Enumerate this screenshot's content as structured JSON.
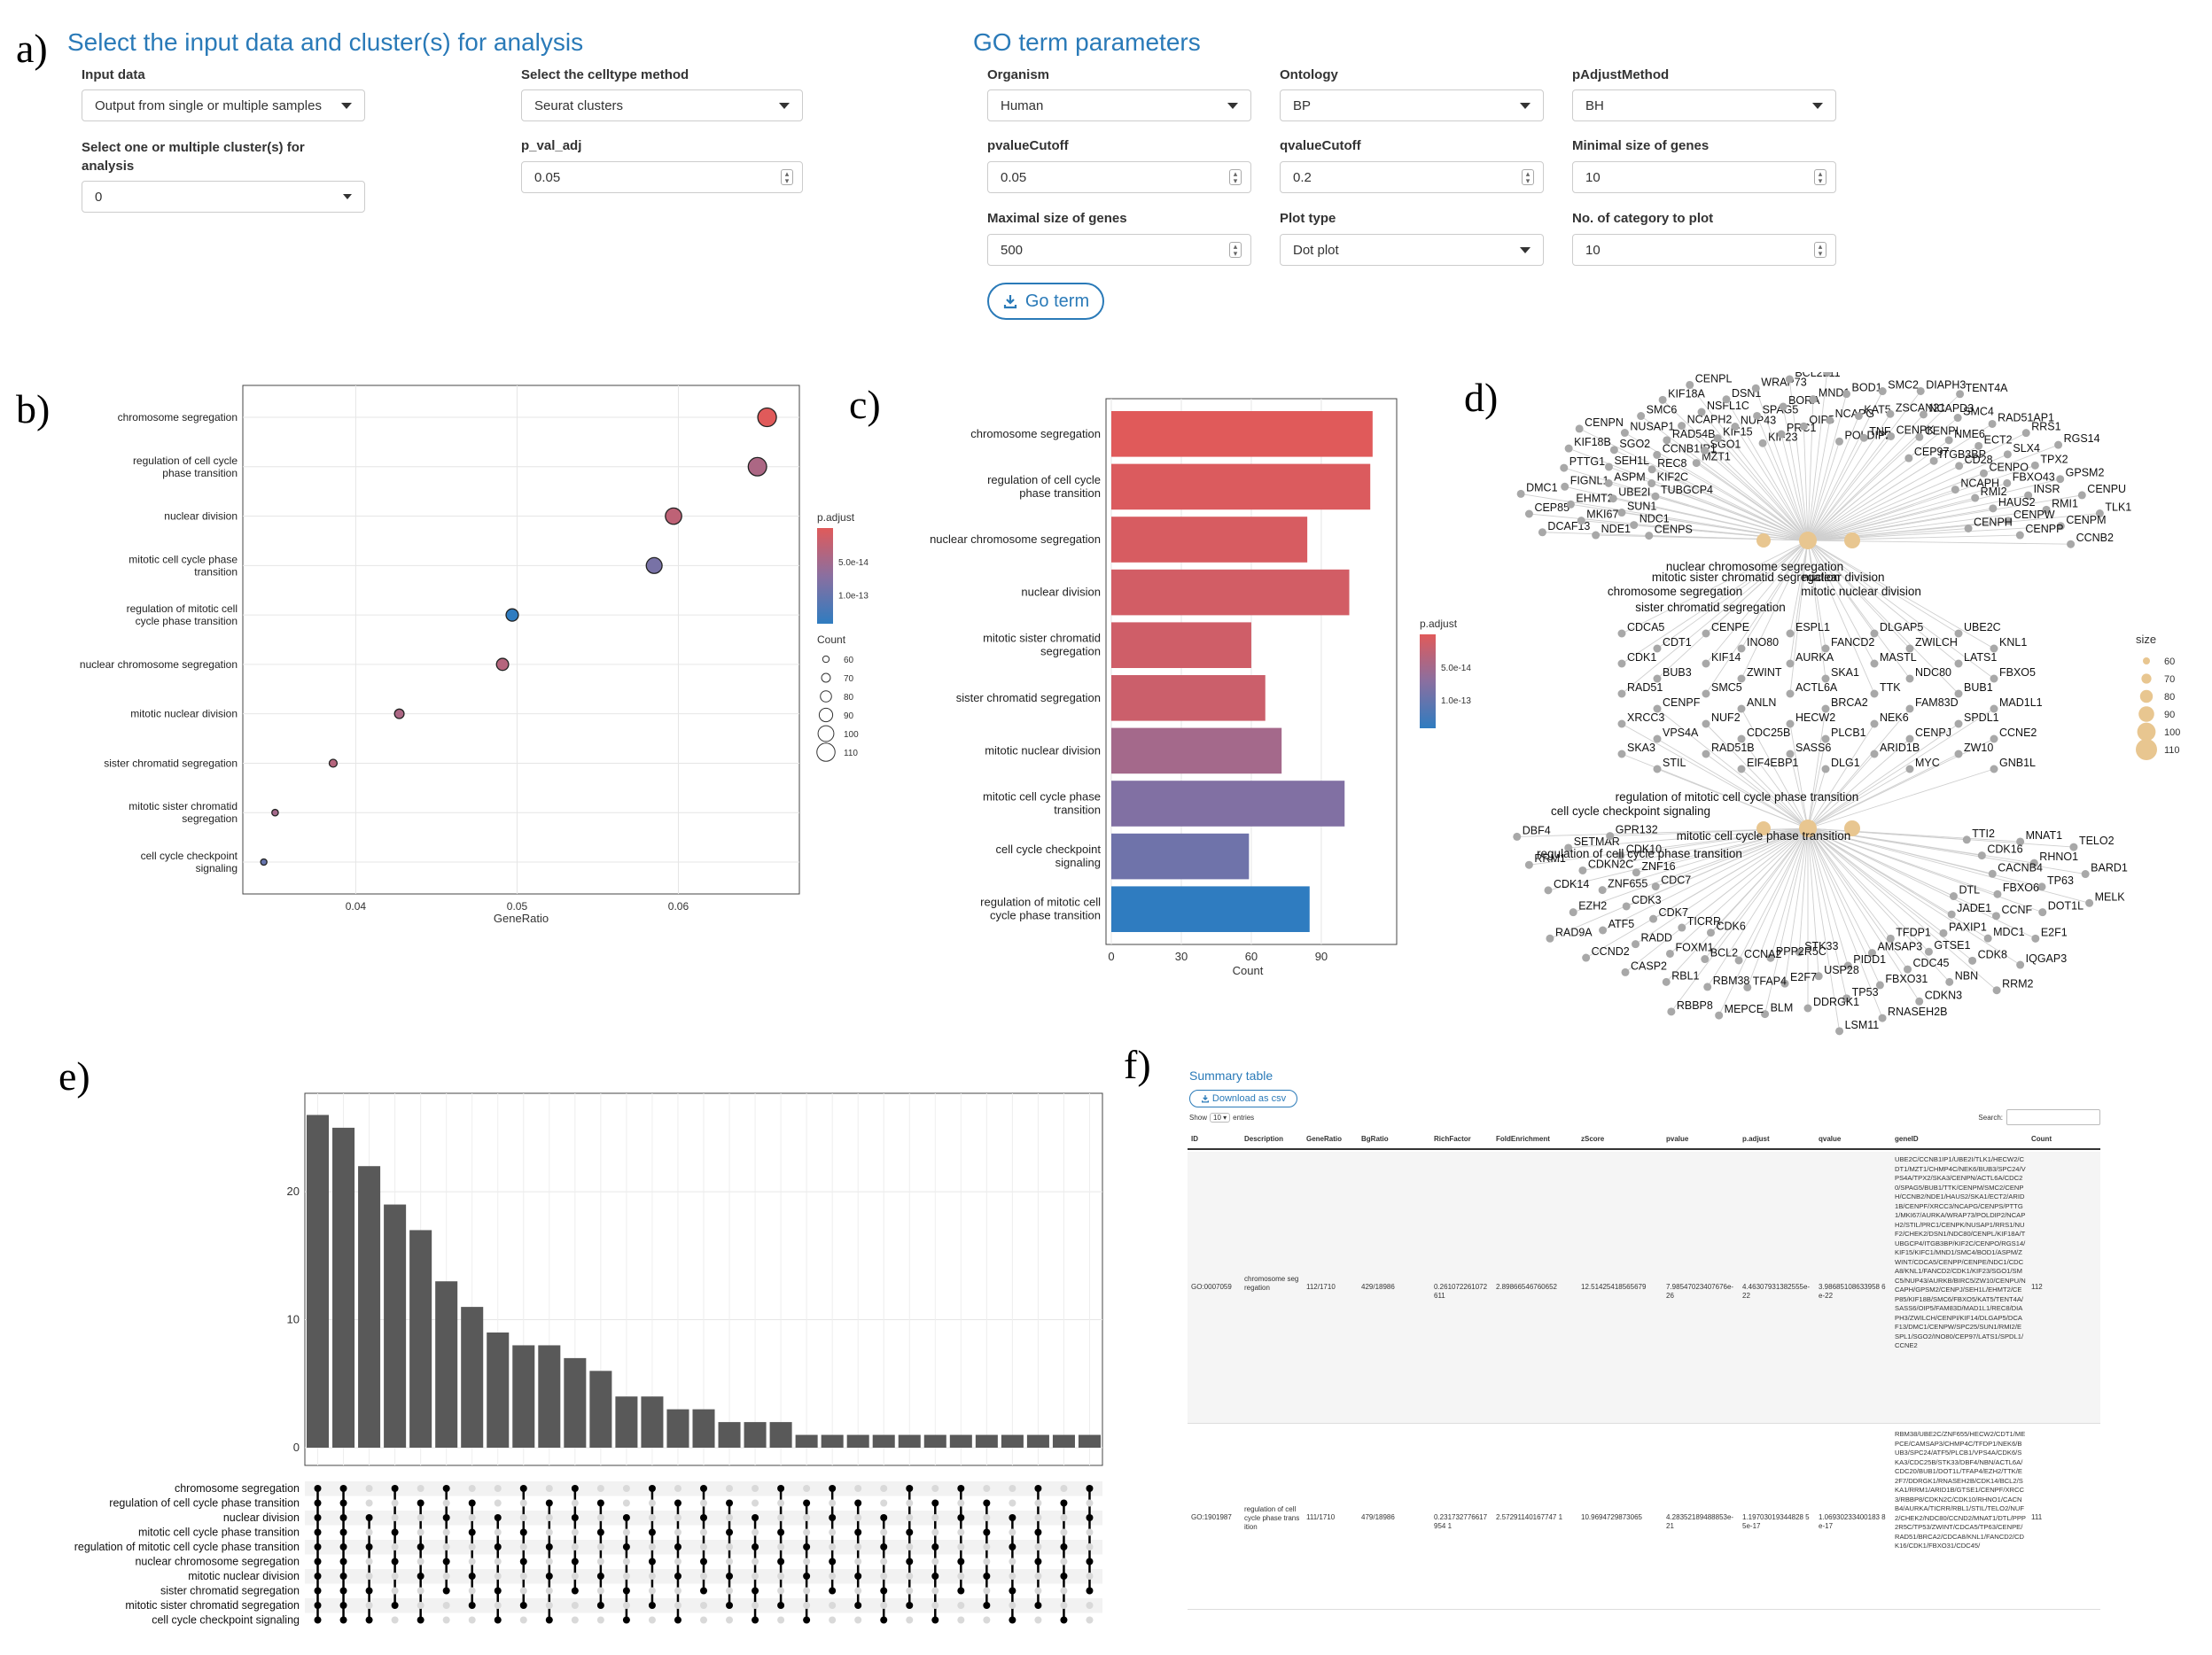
{
  "letters": {
    "a": "a)",
    "b": "b)",
    "c": "c)",
    "d": "d)",
    "e": "e)",
    "f": "f)"
  },
  "input_section": {
    "title": "Select the input data and cluster(s) for analysis",
    "input_data_label": "Input data",
    "input_data_value": "Output from single or multiple samples",
    "celltype_label": "Select the celltype method",
    "celltype_value": "Seurat clusters",
    "clusters_label_1": "Select one or multiple cluster(s) for",
    "clusters_label_2": "analysis",
    "clusters_value": "0",
    "pval_label": "p_val_adj",
    "pval_value": "0.05"
  },
  "go_section": {
    "title": "GO term parameters",
    "organism_label": "Organism",
    "organism_value": "Human",
    "ontology_label": "Ontology",
    "ontology_value": "BP",
    "padjust_label": "pAdjustMethod",
    "padjust_value": "BH",
    "pvalue_label": "pvalueCutoff",
    "pvalue_value": "0.05",
    "qvalue_label": "qvalueCutoff",
    "qvalue_value": "0.2",
    "minsize_label": "Minimal size of genes",
    "minsize_value": "10",
    "maxsize_label": "Maximal size of genes",
    "maxsize_value": "500",
    "plottype_label": "Plot type",
    "plottype_value": "Dot plot",
    "ncat_label": "No. of category to plot",
    "ncat_value": "10",
    "go_button": "Go term"
  },
  "chart_data": [
    {
      "type": "scatter",
      "panel": "b",
      "xlabel": "GeneRatio",
      "xticks": [
        0.04,
        0.05,
        0.06
      ],
      "xlim": [
        0.033,
        0.0675
      ],
      "categories": [
        "chromosome segregation",
        "regulation of cell cycle phase transition",
        "nuclear division",
        "mitotic cell cycle phase transition",
        "regulation of mitotic cell cycle phase transition",
        "nuclear chromosome segregation",
        "mitotic nuclear division",
        "sister chromatid segregation",
        "mitotic sister chromatid segregation",
        "cell cycle checkpoint signaling"
      ],
      "category_lines": [
        [
          "chromosome segregation"
        ],
        [
          "regulation of cell cycle",
          "phase transition"
        ],
        [
          "nuclear division"
        ],
        [
          "mitotic cell cycle phase",
          "transition"
        ],
        [
          "regulation of mitotic cell",
          "cycle phase transition"
        ],
        [
          "nuclear chromosome segregation"
        ],
        [
          "mitotic nuclear division"
        ],
        [
          "sister chromatid segregation"
        ],
        [
          "mitotic sister chromatid",
          "segregation"
        ],
        [
          "cell cycle checkpoint",
          "signaling"
        ]
      ],
      "x": [
        0.0655,
        0.0649,
        0.0597,
        0.0585,
        0.0497,
        0.0491,
        0.0427,
        0.0386,
        0.035,
        0.0343
      ],
      "count": [
        112,
        111,
        102,
        100,
        85,
        84,
        73,
        66,
        60,
        59
      ],
      "p_adjust_scale": [
        0,
        0.3,
        0.2,
        0.6,
        1.0,
        0.25,
        0.3,
        0.25,
        0.35,
        0.7
      ],
      "legend_color_title": "p.adjust",
      "legend_color_ticks": [
        "5.0e-14",
        "1.0e-13"
      ],
      "legend_size_title": "Count",
      "legend_size_values": [
        "60",
        "70",
        "80",
        "90",
        "100",
        "110"
      ]
    },
    {
      "type": "bar",
      "panel": "c",
      "xlabel": "Count",
      "xticks": [
        0,
        30,
        60,
        90
      ],
      "xlim": [
        0,
        117
      ],
      "categories": [
        "chromosome segregation",
        "regulation of cell cycle phase transition",
        "nuclear chromosome segregation",
        "nuclear division",
        "mitotic sister chromatid segregation",
        "sister chromatid segregation",
        "mitotic nuclear division",
        "mitotic cell cycle phase transition",
        "cell cycle checkpoint signaling",
        "regulation of mitotic cell cycle phase transition"
      ],
      "category_lines": [
        [
          "chromosome segregation"
        ],
        [
          "regulation of cell cycle",
          "phase transition"
        ],
        [
          "nuclear chromosome segregation"
        ],
        [
          "nuclear division"
        ],
        [
          "mitotic sister chromatid",
          "segregation"
        ],
        [
          "sister chromatid segregation"
        ],
        [
          "mitotic nuclear division"
        ],
        [
          "mitotic cell cycle phase",
          "transition"
        ],
        [
          "cell cycle checkpoint",
          "signaling"
        ],
        [
          "regulation of mitotic cell",
          "cycle phase transition"
        ]
      ],
      "values": [
        112,
        111,
        84,
        102,
        60,
        66,
        73,
        100,
        59,
        85
      ],
      "p_adjust_scale": [
        0,
        0.03,
        0.05,
        0.08,
        0.1,
        0.12,
        0.35,
        0.55,
        0.65,
        1.0
      ],
      "legend_color_title": "p.adjust",
      "legend_color_ticks": [
        "5.0e-14",
        "1.0e-13"
      ]
    },
    {
      "type": "bar",
      "panel": "e",
      "yticks": [
        0,
        10,
        20
      ],
      "ylim": [
        0,
        27
      ],
      "values": [
        26,
        25,
        22,
        19,
        17,
        13,
        11,
        9,
        8,
        8,
        7,
        6,
        4,
        4,
        3,
        3,
        2,
        2,
        2,
        1,
        1,
        1,
        1,
        1,
        1,
        1,
        1,
        1,
        1,
        1,
        1
      ],
      "set_labels": [
        "chromosome segregation",
        "regulation of cell cycle phase transition",
        "nuclear division",
        "mitotic cell cycle phase transition",
        "regulation of mitotic cell cycle phase transition",
        "nuclear chromosome segregation",
        "mitotic nuclear division",
        "sister chromatid segregation",
        "mitotic sister chromatid segregation",
        "cell cycle checkpoint signaling"
      ]
    }
  ],
  "network": {
    "terms": [
      "nuclear chromosome segregation",
      "mitotic sister chromatid segregation",
      "chromosome segregation",
      "mitotic nuclear division",
      "nuclear division",
      "sister chromatid segregation",
      "regulation of mitotic cell cycle phase transition",
      "cell cycle checkpoint signaling",
      "mitotic cell cycle phase transition",
      "regulation of cell cycle phase transition"
    ],
    "size_title": "size",
    "size_values": [
      "60",
      "70",
      "80",
      "90",
      "100",
      "110"
    ],
    "genes": [
      "CENPS",
      "NDE1",
      "DCAF13",
      "NDC1",
      "MKI67",
      "CEP85",
      "SUN1",
      "EHMT2",
      "DMC1",
      "UBE2I",
      "FIGNL1",
      "TUBGCP4",
      "ASPM",
      "PTTG1",
      "KIF2C",
      "SEH1L",
      "KIF18B",
      "REC8",
      "SGO2",
      "CENPN",
      "CCNB1IP1",
      "NUSAP1",
      "MZT1",
      "RAD54B",
      "SMC6",
      "SGO1",
      "NCAPH2",
      "KIF18A",
      "KIF15",
      "NSFL1C",
      "CENPL",
      "NUP43",
      "DSN1",
      "KIF23",
      "SPAG5",
      "WRAP73",
      "PRC1",
      "BORA",
      "BCL2L11",
      "OIP5",
      "MND1",
      "KIFC1",
      "NCAPG",
      "BOD1",
      "POLDIP2",
      "KAT5",
      "SMC2",
      "TNF",
      "ZSCAN21",
      "DIAPH3",
      "CENPK",
      "NCAPD3",
      "TENT4A",
      "CENPI",
      "SMC4",
      "CEP97",
      "NME6",
      "RAD51AP1",
      "ITGB3BP",
      "ECT2",
      "RRS1",
      "CD28",
      "SLX4",
      "RGS14",
      "CENPO",
      "TPX2",
      "NCAPH",
      "FBXO43",
      "GPSM2",
      "RMI2",
      "INSR",
      "CENPU",
      "HAUS2",
      "RMI1",
      "TLK1",
      "CENPW",
      "CENPM",
      "CENPH",
      "CENPP",
      "CCNB2",
      "CDCA5",
      "CENPE",
      "ESPL1",
      "DLGAP5",
      "UBE2C",
      "CDT1",
      "INO80",
      "FANCD2",
      "ZWILCH",
      "KNL1",
      "CDK1",
      "KIF14",
      "AURKA",
      "MASTL",
      "LATS1",
      "BUB3",
      "ZWINT",
      "SKA1",
      "NDC80",
      "FBXO5",
      "RAD51",
      "SMC5",
      "ACTL6A",
      "TTK",
      "BUB1",
      "CENPF",
      "ANLN",
      "BRCA2",
      "FAM83D",
      "MAD1L1",
      "XRCC3",
      "NUF2",
      "HECW2",
      "NEK6",
      "SPDL1",
      "VPS4A",
      "CDC25B",
      "PLCB1",
      "CENPJ",
      "CCNE2",
      "SKA3",
      "RAD51B",
      "SASS6",
      "ARID1B",
      "ZW10",
      "STIL",
      "EIF4EBP1",
      "DLG1",
      "MYC",
      "GNB1L",
      "TTI2",
      "MNAT1",
      "TELO2",
      "CDK16",
      "RHNO1",
      "BARD1",
      "CACNB4",
      "TP63",
      "MELK",
      "FBXO6",
      "DOT1L",
      "DTL",
      "CCNF",
      "E2F1",
      "JADE1",
      "MDC1",
      "IQGAP3",
      "PAXIP1",
      "CDK8",
      "RRM2",
      "GTSE1",
      "NBN",
      "TFDP1",
      "CDC45",
      "CDKN3",
      "AMSAP3",
      "FBXO31",
      "RNASEH2B",
      "PIDD1",
      "TP53",
      "LSM11",
      "USP28",
      "DDRGK1",
      "STK33",
      "E2F7",
      "BLM",
      "PPP2R5C",
      "TFAP4",
      "MEPCE",
      "CCNA2",
      "RBM38",
      "RBBP8",
      "BCL2",
      "RBL1",
      "CDK6",
      "FOXM1",
      "CASP2",
      "TICRR",
      "RADD",
      "CCND2",
      "CDK7",
      "ATF5",
      "RAD9A",
      "CDK3",
      "EZH2",
      "CDC7",
      "ZNF655",
      "CDK14",
      "ZNF16",
      "CDKN2C",
      "RRM1",
      "CDK10",
      "SETMAR",
      "DBF4",
      "GPR132"
    ]
  },
  "summary": {
    "title": "Summary table",
    "download_label": "Download as csv",
    "show_label": "Show",
    "show_value": "10",
    "entries_label": "entries",
    "search_label": "Search:",
    "columns": [
      "ID",
      "Description",
      "GeneRatio",
      "BgRatio",
      "RichFactor",
      "FoldEnrichment",
      "zScore",
      "pvalue",
      "p.adjust",
      "qvalue",
      "geneID",
      "Count"
    ],
    "rows": [
      {
        "ID": "GO:0007059",
        "Description": "chromosome segregation",
        "GeneRatio": "112/1710",
        "BgRatio": "429/18986",
        "RichFactor": "0.261072261072611",
        "FoldEnrichment": "2.89866546760652",
        "zScore": "12.51425418565679",
        "pvalue": "7.98547023407676e-26",
        "padjust": "4.46307931382555e-22",
        "qvalue": "3.98685108633958 6e-22",
        "geneID": "UBE2C/CCNB1IP1/UBE2I/TLK1/HECW2/CDT1/MZT1/CHMP4C/NEK6/BUB3/SPC24/VPS4A/TPX2/SKA3/CENPN/ACTL6A/CDC20/SPAG5/BUB1/TTK/CENPM/SMC2/CENPH/CCNB2/NDE1/HAUS2/SKA1/ECT2/ARID1B/CENPF/XRCC3/NCAPG/CENPS/PTTG1/MKI67/AURKA/WRAP73/POLDIP2/NCAPH2/STIL/PRC1/CENPK/NUSAP1/RRS1/NUF2/CHEK2/DSN1/NDC80/CENPL/KIF18A/TUBGCP4/ITGB3BP/KIF2C/CENPO/RGS14/KIF15/KIFC1/MND1/SMC4/BOD1/ASPM/ZWINT/CDCA5/CENPP/CENPE/NDC1/CDCA8/KNL1/FANCD2/CDK1/KIF23/SGO1/SMC5/NUP43/AURKB/BIRC5/ZW10/CENPU/NCAPH/GPSM2/CENPJ/SEH1L/EHMT2/CEP85/KIF18B/SMC6/FBXO5/KAT5/TENT4A/SASS6/OIP5/FAM83D/MAD1L1/REC8/DIAPH3/ZWILCH/CENPI/KIF14/DLGAP5/DCAF13/DMC1/CENPW/SPC25/SUN1/RMI2/ESPL1/SGO2/INO80/CEP97/LATS1/SPDL1/CCNE2",
        "Count": "112"
      },
      {
        "ID": "GO:1901987",
        "Description": "regulation of cell cycle phase transition",
        "GeneRatio": "111/1710",
        "BgRatio": "479/18986",
        "RichFactor": "0.231732776617954 1",
        "FoldEnrichment": "2.57291140167747 1",
        "zScore": "10.9694729873065",
        "pvalue": "4.28352189488853e-21",
        "padjust": "1.19703019344828 55e-17",
        "qvalue": "1.06930233400183 8e-17",
        "geneID": "RBM38/UBE2C/ZNF655/HECW2/CDT1/MEPCE/CAMSAP3/CHMP4C/TFDP1/NEK6/BUB3/SPC24/ATF5/PLCB1/VPS4A/CDK6/SKA3/CDC25B/STK33/DBF4/NBN/ACTL6A/CDC20/BUB1/DOT1L/TFAP4/EZH2/TTK/E2F7/DDRGK1/RNASEH2B/CDK14/BCL2/SKA1/RRM1/ARID1B/GTSE1/CENPF/XRCC3/RBBP8/CDKN2C/CDK10/RHNO1/CACNB4/AURKA/TICRR/RBL1/STIL/TELO2/NUF2/CHEK2/NDC80/CCND2/MNAT1/DTL/PPP2R5C/TP53/ZWINT/CDCA5/TP63/CENPE/RAD51/BRCA2/CDCA8/KNL1/FANCD2/CDK16/CDK1/FBXO31/CDC45/",
        "Count": "111"
      }
    ]
  }
}
